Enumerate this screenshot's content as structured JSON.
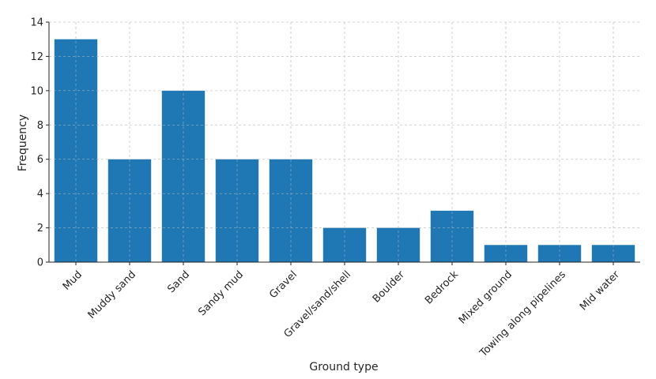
{
  "chart_data": {
    "type": "bar",
    "title": "",
    "xlabel": "Ground type",
    "ylabel": "Frequency",
    "categories": [
      "Mud",
      "Muddy sand",
      "Sand",
      "Sandy mud",
      "Gravel",
      "Gravel/sand/shell",
      "Boulder",
      "Bedrock",
      "Mixed ground",
      "Towing along pipelines",
      "Mid water"
    ],
    "values": [
      13,
      6,
      10,
      6,
      6,
      2,
      2,
      3,
      1,
      1,
      1
    ],
    "ylim": [
      0,
      14
    ],
    "yticks": [
      0,
      2,
      4,
      6,
      8,
      10,
      12,
      14
    ],
    "grid": true,
    "bar_color": "#1f77b4",
    "grid_color": "#cccccc",
    "axis_color": "#262626"
  }
}
